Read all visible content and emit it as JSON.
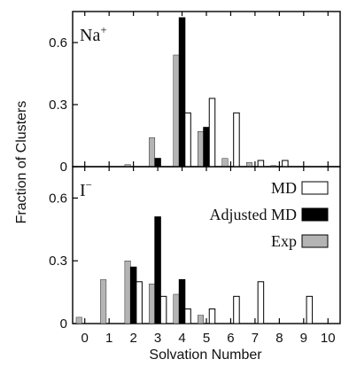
{
  "chart_data": {
    "type": "bar",
    "xlabel": "Solvation Number",
    "ylabel": "Fraction of Clusters",
    "x_ticks": [
      "0",
      "1",
      "2",
      "3",
      "4",
      "5",
      "6",
      "7",
      "8",
      "9",
      "10"
    ],
    "legend": {
      "placement": "top-right of lower panel",
      "entries": [
        "MD",
        "Adjusted MD",
        "Exp"
      ]
    },
    "series_colors": {
      "MD": "#ffffff",
      "Adjusted MD": "#000000",
      "Exp": "#b4b4b4"
    },
    "panels": [
      {
        "label": "Na",
        "superscript": "+",
        "ylim": [
          0,
          0.75
        ],
        "yticks": [
          "0",
          "0.3",
          "0.6"
        ],
        "series": [
          {
            "name": "MD",
            "points": [
              {
                "x": 4,
                "y": 0.26
              },
              {
                "x": 5,
                "y": 0.33
              },
              {
                "x": 6,
                "y": 0.26
              },
              {
                "x": 7,
                "y": 0.03
              },
              {
                "x": 8,
                "y": 0.03
              }
            ]
          },
          {
            "name": "Adjusted MD",
            "points": [
              {
                "x": 3,
                "y": 0.04
              },
              {
                "x": 4,
                "y": 0.72
              },
              {
                "x": 5,
                "y": 0.19
              }
            ]
          },
          {
            "name": "Exp",
            "points": [
              {
                "x": 2,
                "y": 0.01
              },
              {
                "x": 3,
                "y": 0.14
              },
              {
                "x": 4,
                "y": 0.54
              },
              {
                "x": 5,
                "y": 0.17
              },
              {
                "x": 6,
                "y": 0.04
              },
              {
                "x": 7,
                "y": 0.02
              },
              {
                "x": 8,
                "y": 0.005
              }
            ]
          }
        ]
      },
      {
        "label": "I",
        "superscript": "−",
        "ylim": [
          0,
          0.75
        ],
        "yticks": [
          "0",
          "0.3",
          "0.6"
        ],
        "series": [
          {
            "name": "MD",
            "points": [
              {
                "x": 2,
                "y": 0.2
              },
              {
                "x": 3,
                "y": 0.13
              },
              {
                "x": 4,
                "y": 0.07
              },
              {
                "x": 5,
                "y": 0.07
              },
              {
                "x": 6,
                "y": 0.13
              },
              {
                "x": 7,
                "y": 0.2
              },
              {
                "x": 9,
                "y": 0.13
              }
            ]
          },
          {
            "name": "Adjusted MD",
            "points": [
              {
                "x": 2,
                "y": 0.27
              },
              {
                "x": 3,
                "y": 0.51
              },
              {
                "x": 4,
                "y": 0.21
              }
            ]
          },
          {
            "name": "Exp",
            "points": [
              {
                "x": 0,
                "y": 0.03
              },
              {
                "x": 1,
                "y": 0.21
              },
              {
                "x": 2,
                "y": 0.3
              },
              {
                "x": 3,
                "y": 0.19
              },
              {
                "x": 4,
                "y": 0.14
              },
              {
                "x": 5,
                "y": 0.04
              }
            ]
          }
        ]
      }
    ]
  }
}
